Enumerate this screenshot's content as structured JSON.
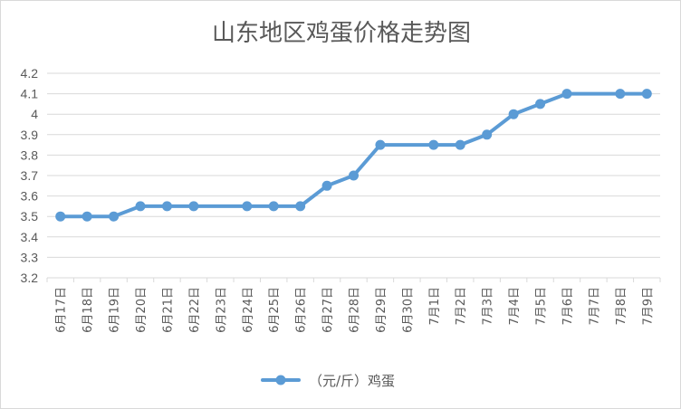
{
  "chart_data": {
    "type": "line",
    "title": "山东地区鸡蛋价格走势图",
    "xlabel": "",
    "ylabel": "",
    "ylim": [
      3.2,
      4.2
    ],
    "yticks": [
      "3.2",
      "3.3",
      "3.4",
      "3.5",
      "3.6",
      "3.7",
      "3.8",
      "3.9",
      "4",
      "4.1",
      "4.2"
    ],
    "grid": true,
    "legend_position": "bottom",
    "colors": {
      "series": "#5b9bd5",
      "grid": "#d9d9d9",
      "text": "#595959"
    },
    "categories": [
      "6月17日",
      "6月18日",
      "6月19日",
      "6月20日",
      "6月21日",
      "6月22日",
      "6月23日",
      "6月24日",
      "6月25日",
      "6月26日",
      "6月27日",
      "6月28日",
      "6月29日",
      "6月30日",
      "7月1日",
      "7月2日",
      "7月3日",
      "7月4日",
      "7月5日",
      "7月6日",
      "7月7日",
      "7月8日",
      "7月9日"
    ],
    "series": [
      {
        "name": "（元/斤）鸡蛋",
        "values": [
          3.5,
          3.5,
          3.5,
          3.55,
          3.55,
          3.55,
          null,
          3.55,
          3.55,
          3.55,
          3.65,
          3.7,
          3.85,
          null,
          3.85,
          3.85,
          3.9,
          4.0,
          4.05,
          4.1,
          null,
          4.1,
          4.1
        ]
      }
    ]
  }
}
